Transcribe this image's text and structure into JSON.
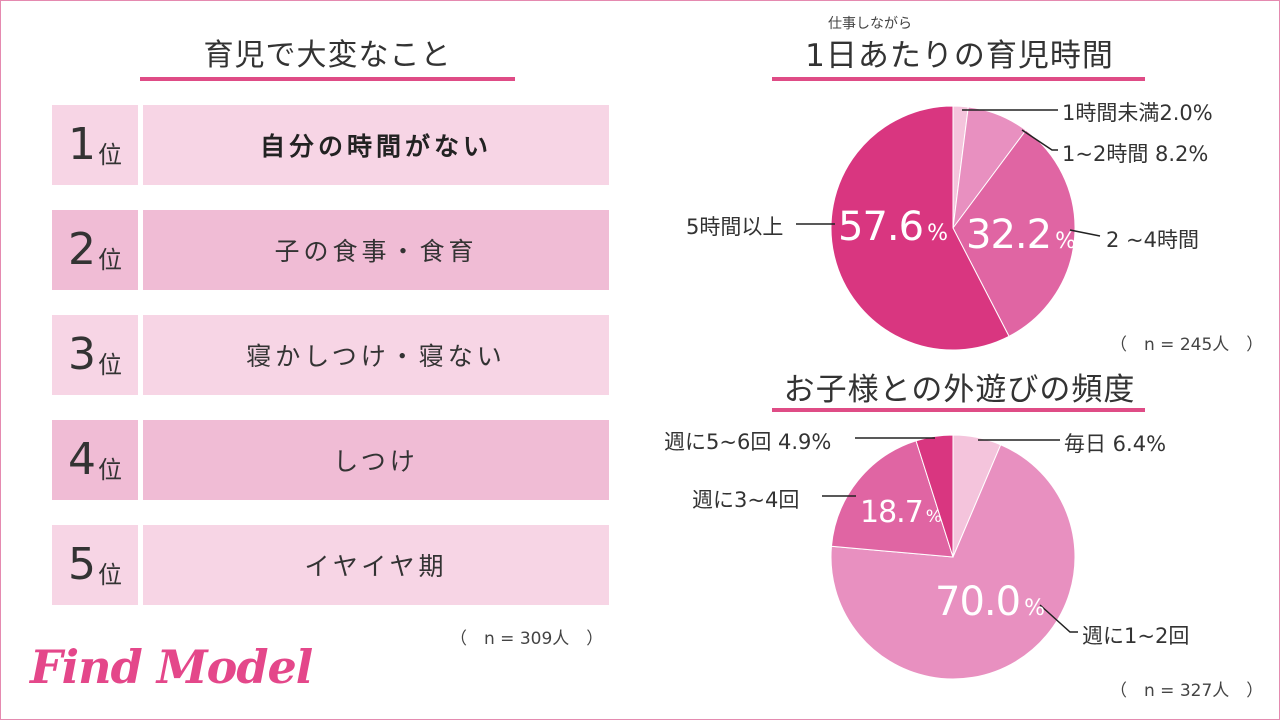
{
  "brand": "Find Model",
  "ranking": {
    "title": "育児で大変なこと",
    "rank_suffix": "位",
    "items": [
      {
        "rank": "1",
        "label": "自分の時間がない"
      },
      {
        "rank": "2",
        "label": "子の食事・食育"
      },
      {
        "rank": "3",
        "label": "寝かしつけ・寝ない"
      },
      {
        "rank": "4",
        "label": "しつけ"
      },
      {
        "rank": "5",
        "label": "イヤイヤ期"
      }
    ],
    "sample": "（　n = 309人　）"
  },
  "colors": {
    "accent": "#df4c86",
    "row_light": "#f7d5e5",
    "row_dark": "#f0bcd5",
    "pie_dark": "#d93680",
    "pie_mid": "#e065a3",
    "pie_light": "#e890c0",
    "pie_pale": "#f4c4dc"
  },
  "chart_data": [
    {
      "type": "pie",
      "title": "1日あたりの育児時間",
      "title_ruby": "仕事しながら",
      "categories": [
        "1時間未満",
        "1~2時間",
        "2 ~4時間",
        "5時間以上"
      ],
      "values": [
        2.0,
        8.2,
        32.2,
        57.6
      ],
      "labels": {
        "c0": "1時間未満2.0%",
        "c1": "1~2時間 8.2%",
        "c2": "2 ~4時間",
        "c3": "5時間以上",
        "v2": "32.2",
        "v3": "57.6",
        "pct": "%"
      },
      "sample": "（　n = 245人　）"
    },
    {
      "type": "pie",
      "title": "お子様との外遊びの頻度",
      "categories": [
        "毎日",
        "週に1~2回",
        "週に3~4回",
        "週に5~6回"
      ],
      "values": [
        6.4,
        70.0,
        18.7,
        4.9
      ],
      "labels": {
        "c0": "毎日 6.4%",
        "c1": "週に1~2回",
        "c2": "週に3~4回",
        "c3": "週に5~6回 4.9%",
        "v1": "70.0",
        "v2": "18.7",
        "pct": "%"
      },
      "sample": "（　n = 327人　）"
    }
  ]
}
